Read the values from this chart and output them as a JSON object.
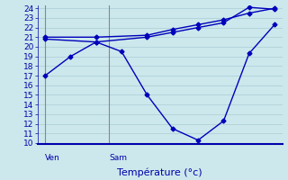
{
  "background_color": "#cce8ec",
  "grid_color": "#aaccd4",
  "line_color": "#0000bb",
  "line1_x": [
    0,
    1,
    2,
    3,
    4,
    5,
    6,
    7,
    8,
    9
  ],
  "line1_y": [
    17,
    19,
    20.5,
    19.5,
    15,
    11.5,
    10.3,
    12.3,
    19.3,
    22.3
  ],
  "line2_x": [
    0,
    2,
    4,
    5,
    6,
    7,
    8,
    9
  ],
  "line2_y": [
    21.0,
    21.0,
    21.2,
    21.8,
    22.3,
    22.8,
    23.5,
    24.0
  ],
  "line3_x": [
    0,
    2,
    4,
    5,
    6,
    7,
    8,
    9
  ],
  "line3_y": [
    20.8,
    20.5,
    21.0,
    21.5,
    22.0,
    22.5,
    24.1,
    23.9
  ],
  "ylim": [
    10,
    24
  ],
  "yticks": [
    10,
    11,
    12,
    13,
    14,
    15,
    16,
    17,
    18,
    19,
    20,
    21,
    22,
    23,
    24
  ],
  "xlim": [
    -0.3,
    9.3
  ],
  "ven_x": 0,
  "sam_x": 2.5,
  "ven_label": "Ven",
  "sam_label": "Sam",
  "xlabel": "Température (°c)",
  "tick_fontsize": 6.5,
  "label_fontsize": 8,
  "ax_color": "#0000aa",
  "vline_color": "#888888",
  "ven_vline_x": 0,
  "sam_vline_x": 2.5
}
